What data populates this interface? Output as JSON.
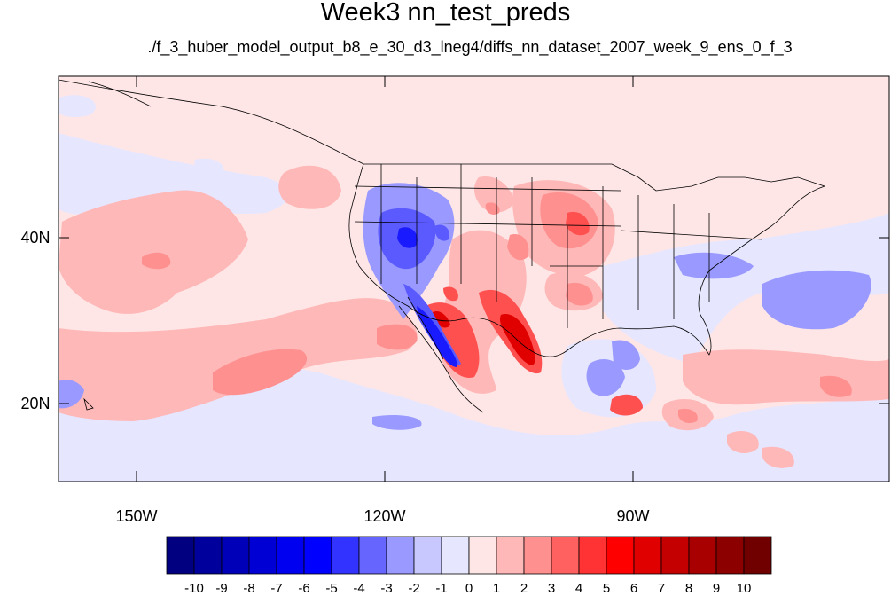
{
  "title": "Week3 nn_test_preds",
  "subtitle": "./f_3_huber_model_output_b8_e_30_d3_lneg4/diffs_nn_dataset_2007_week_9_ens_0_f_3",
  "map": {
    "lat_labels": [
      "40N",
      "20N"
    ],
    "lon_labels": [
      "150W",
      "120W",
      "90W"
    ],
    "background_color": "#ffe6e6",
    "border_color": "#000000"
  },
  "colorbar": {
    "labels": [
      "-10",
      "-9",
      "-8",
      "-7",
      "-6",
      "-5",
      "-4",
      "-3",
      "-2",
      "-1",
      "0",
      "1",
      "2",
      "3",
      "4",
      "5",
      "6",
      "7",
      "8",
      "9",
      "10"
    ],
    "colors": [
      "#000080",
      "#00009c",
      "#0000b8",
      "#0000d5",
      "#0000f0",
      "#0000ff",
      "#3333ff",
      "#6666ff",
      "#9999ff",
      "#c8c8ff",
      "#e6e6ff",
      "#ffe6e6",
      "#ffb8b8",
      "#ff9090",
      "#ff6060",
      "#ff3333",
      "#ff0000",
      "#e00000",
      "#c40000",
      "#a80000",
      "#8c0000",
      "#700000"
    ]
  }
}
